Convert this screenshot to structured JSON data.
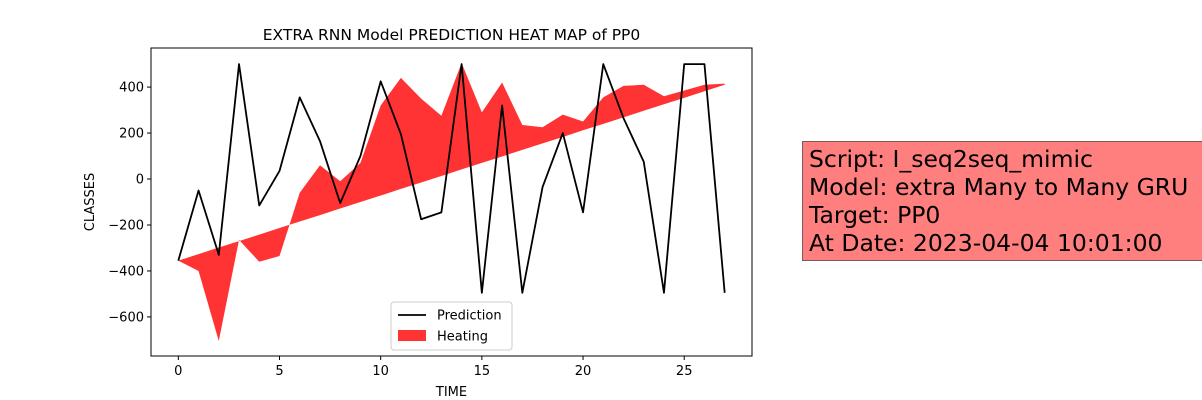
{
  "chart_data": {
    "type": "line",
    "title": "EXTRA RNN Model PREDICTION HEAT MAP of PP0",
    "xlabel": "TIME",
    "ylabel": "CLASSES",
    "xlim": [
      -1.35,
      28.35
    ],
    "ylim": [
      -770,
      570
    ],
    "xticks": [
      0,
      5,
      10,
      15,
      20,
      25
    ],
    "yticks": [
      -600,
      -400,
      -200,
      0,
      200,
      400
    ],
    "ytick_labels": [
      "−600",
      "−400",
      "−200",
      "0",
      "200",
      "400"
    ],
    "grid": false,
    "legend_position": "lower center",
    "series": [
      {
        "name": "Prediction",
        "kind": "line",
        "color": "#000000",
        "x": [
          0,
          1,
          2,
          3,
          4,
          5,
          6,
          7,
          8,
          9,
          10,
          11,
          12,
          13,
          14,
          15,
          16,
          17,
          18,
          19,
          20,
          21,
          22,
          23,
          24,
          25,
          26,
          27
        ],
        "y": [
          -355,
          -50,
          -330,
          500,
          -115,
          35,
          355,
          165,
          -105,
          100,
          425,
          195,
          -175,
          -145,
          500,
          -495,
          320,
          -495,
          -35,
          200,
          -145,
          500,
          265,
          75,
          -495,
          500,
          500,
          -495
        ]
      },
      {
        "name": "Heating",
        "kind": "area",
        "color": "#ff0000",
        "x": [
          0,
          1,
          2,
          3,
          4,
          5,
          6,
          7,
          8,
          9,
          10,
          11,
          12,
          13,
          14,
          15,
          16,
          17,
          18,
          19,
          20,
          21,
          22,
          23,
          24,
          25,
          26,
          27
        ],
        "y1": [
          -355,
          -327,
          -298,
          -270,
          -242,
          -213,
          -185,
          -157,
          -128,
          -100,
          -72,
          -43,
          -15,
          13,
          42,
          70,
          98,
          127,
          155,
          183,
          212,
          240,
          268,
          297,
          325,
          353,
          382,
          410
        ],
        "y2": [
          -355,
          -400,
          -705,
          -265,
          -360,
          -335,
          -60,
          60,
          -10,
          70,
          320,
          440,
          350,
          275,
          505,
          290,
          420,
          235,
          225,
          280,
          250,
          355,
          405,
          410,
          360,
          385,
          410,
          415
        ]
      }
    ]
  },
  "info_box": {
    "background": "#ff7f7f",
    "lines": [
      "Script: I_seq2seq_mimic",
      "Model: extra Many to Many GRU",
      "Target: PP0",
      "At Date: 2023-04-04 10:01:00"
    ]
  }
}
